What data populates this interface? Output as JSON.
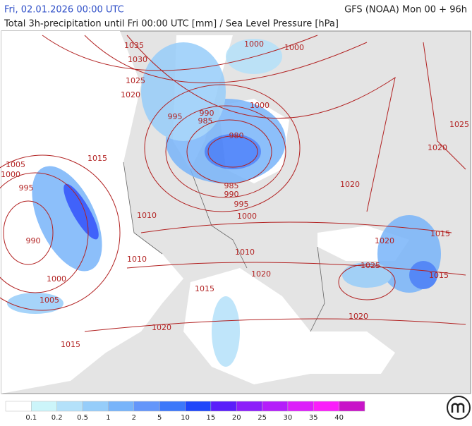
{
  "header": {
    "run_time": "Fri, 02.01.2026 00:00 UTC",
    "model": "GFS (NOAA) Mon 00 + 96h",
    "description": "Total 3h-precipitation until Fri 00:00 UTC [mm] / Sea Level Pressure [hPa]"
  },
  "isobar_labels": [
    "1035",
    "1030",
    "1025",
    "1020",
    "1000",
    "1000",
    "1000",
    "995",
    "990",
    "985",
    "980",
    "1015",
    "1005",
    "1000",
    "995",
    "985",
    "990",
    "995",
    "1000",
    "990",
    "1010",
    "1020",
    "1025",
    "1020",
    "1015",
    "1020",
    "1010",
    "1010",
    "1020",
    "1025",
    "1015",
    "1000",
    "1005",
    "1015",
    "1020",
    "1020",
    "1015"
  ],
  "legend": {
    "colors": [
      "#ffffff",
      "#ccf5fa",
      "#b4e1fa",
      "#96cdfa",
      "#78b4fa",
      "#6496fa",
      "#3c78fa",
      "#1e46fa",
      "#5a1efa",
      "#8c1efa",
      "#b41efa",
      "#dc1efa",
      "#fa1efa",
      "#c814c8"
    ],
    "labels": [
      "0.1",
      "0.2",
      "0.5",
      "1",
      "2",
      "5",
      "10",
      "15",
      "20",
      "25",
      "30",
      "35",
      "40"
    ]
  }
}
